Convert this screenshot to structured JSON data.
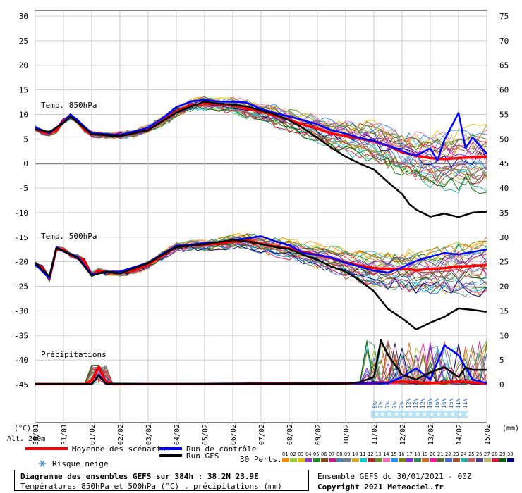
{
  "chart_data": {
    "type": "line",
    "left_axis_ticks": [
      30,
      25,
      20,
      15,
      10,
      5,
      0,
      -5,
      -10,
      -15,
      -20,
      -25,
      -30,
      -35,
      -40,
      -45
    ],
    "right_axis_ticks": [
      75,
      70,
      65,
      60,
      55,
      50,
      45,
      40,
      35,
      30,
      25,
      20,
      15,
      10,
      5,
      0
    ],
    "left_axis_unit": "(°C)",
    "right_axis_unit": "(mm)",
    "altitude_label": "Alt. 200m",
    "x_tick_labels": [
      "30/01",
      "31/01",
      "01/02",
      "02/02",
      "03/02",
      "04/02",
      "05/02",
      "06/02",
      "07/02",
      "08/02",
      "09/02",
      "10/02",
      "11/02",
      "12/02",
      "13/02",
      "14/02",
      "15/02"
    ],
    "x_range_days": [
      0,
      16
    ],
    "panel_labels": {
      "t850": "Temp. 850hPa",
      "t500": "Temp. 500hPa",
      "precip": "Précipitations"
    },
    "series": [
      {
        "name": "Moyenne des scénarios",
        "color": "#ff0000",
        "t850": [
          [
            0,
            7.2
          ],
          [
            0.25,
            6.4
          ],
          [
            0.5,
            6.1
          ],
          [
            0.75,
            6.8
          ],
          [
            1,
            8.6
          ],
          [
            1.25,
            9.6
          ],
          [
            1.5,
            8.6
          ],
          [
            1.75,
            6.9
          ],
          [
            2,
            6.0
          ],
          [
            2.5,
            5.8
          ],
          [
            3,
            5.8
          ],
          [
            3.5,
            6.1
          ],
          [
            4,
            7.1
          ],
          [
            4.5,
            8.6
          ],
          [
            5,
            10.6
          ],
          [
            5.5,
            11.8
          ],
          [
            6,
            12.3
          ],
          [
            6.5,
            12.1
          ],
          [
            7,
            11.9
          ],
          [
            7.5,
            11.2
          ],
          [
            8,
            10.6
          ],
          [
            8.5,
            9.8
          ],
          [
            9,
            8.9
          ],
          [
            9.5,
            7.9
          ],
          [
            10,
            7.1
          ],
          [
            10.5,
            6.1
          ],
          [
            11,
            5.6
          ],
          [
            11.5,
            5.1
          ],
          [
            12,
            4.5
          ],
          [
            12.5,
            3.6
          ],
          [
            13,
            2.3
          ],
          [
            13.5,
            1.6
          ],
          [
            14,
            1.1
          ],
          [
            14.5,
            0.9
          ],
          [
            15,
            1.1
          ],
          [
            15.5,
            1.3
          ],
          [
            16,
            1.4
          ]
        ],
        "t500": [
          [
            0,
            -20.5
          ],
          [
            0.25,
            -21.2
          ],
          [
            0.5,
            -23.5
          ],
          [
            0.75,
            -17.3
          ],
          [
            1,
            -17.6
          ],
          [
            1.25,
            -18.6
          ],
          [
            1.5,
            -19.0
          ],
          [
            1.75,
            -19.9
          ],
          [
            2,
            -22.6
          ],
          [
            2.25,
            -21.8
          ],
          [
            2.5,
            -22.2
          ],
          [
            3,
            -22.3
          ],
          [
            3.5,
            -21.8
          ],
          [
            4,
            -20.6
          ],
          [
            4.5,
            -18.8
          ],
          [
            5,
            -17.0
          ],
          [
            5.5,
            -16.6
          ],
          [
            6,
            -16.5
          ],
          [
            6.5,
            -16.3
          ],
          [
            7,
            -15.9
          ],
          [
            7.5,
            -15.6
          ],
          [
            8,
            -16.3
          ],
          [
            8.5,
            -16.9
          ],
          [
            9,
            -17.3
          ],
          [
            9.5,
            -18.0
          ],
          [
            10,
            -18.6
          ],
          [
            10.5,
            -19.3
          ],
          [
            11,
            -20.1
          ],
          [
            11.5,
            -20.8
          ],
          [
            12,
            -21.3
          ],
          [
            12.5,
            -21.5
          ],
          [
            13,
            -21.4
          ],
          [
            13.5,
            -21.7
          ],
          [
            14,
            -21.5
          ],
          [
            14.5,
            -21.3
          ],
          [
            15,
            -21.0
          ],
          [
            16,
            -20.7
          ]
        ],
        "precip": [
          [
            0,
            0.1
          ],
          [
            1,
            0.1
          ],
          [
            1.75,
            0.1
          ],
          [
            2,
            0.8
          ],
          [
            2.25,
            3.6
          ],
          [
            2.5,
            0.6
          ],
          [
            2.75,
            0.1
          ],
          [
            4,
            0.1
          ],
          [
            6,
            0.1
          ],
          [
            8,
            0.2
          ],
          [
            10,
            0.2
          ],
          [
            12,
            0.3
          ],
          [
            13,
            0.6
          ],
          [
            14,
            0.3
          ],
          [
            15,
            0.6
          ],
          [
            16,
            0.2
          ]
        ]
      },
      {
        "name": "Run de contrôle",
        "color": "#0000ff",
        "t850": [
          [
            0,
            7.4
          ],
          [
            0.5,
            6.2
          ],
          [
            1,
            8.4
          ],
          [
            1.25,
            10.0
          ],
          [
            1.5,
            8.8
          ],
          [
            2,
            6.2
          ],
          [
            3,
            5.8
          ],
          [
            4,
            7.3
          ],
          [
            4.5,
            9.2
          ],
          [
            5,
            11.5
          ],
          [
            5.5,
            12.6
          ],
          [
            6,
            13.0
          ],
          [
            6.5,
            12.6
          ],
          [
            7,
            12.6
          ],
          [
            7.5,
            12.4
          ],
          [
            8,
            11.1
          ],
          [
            8.5,
            10.3
          ],
          [
            9,
            9.6
          ],
          [
            9.5,
            8.8
          ],
          [
            10,
            8.0
          ],
          [
            10.5,
            6.8
          ],
          [
            11,
            6.1
          ],
          [
            11.5,
            5.2
          ],
          [
            12,
            4.6
          ],
          [
            12.5,
            3.6
          ],
          [
            13,
            2.6
          ],
          [
            13.25,
            2.0
          ],
          [
            13.5,
            1.6
          ],
          [
            14,
            3.1
          ],
          [
            14.25,
            0.6
          ],
          [
            14.5,
            4.8
          ],
          [
            15,
            10.3
          ],
          [
            15.25,
            3.1
          ],
          [
            15.5,
            5.3
          ],
          [
            16,
            2.0
          ]
        ],
        "t500": [
          [
            0,
            -20.5
          ],
          [
            0.5,
            -23.4
          ],
          [
            0.75,
            -17.1
          ],
          [
            1,
            -17.8
          ],
          [
            1.5,
            -19.0
          ],
          [
            2,
            -22.5
          ],
          [
            2.5,
            -22.2
          ],
          [
            3,
            -22.0
          ],
          [
            4,
            -20.2
          ],
          [
            4.5,
            -18.4
          ],
          [
            5,
            -16.8
          ],
          [
            6,
            -16.2
          ],
          [
            6.5,
            -16.0
          ],
          [
            7,
            -15.6
          ],
          [
            7.5,
            -15.2
          ],
          [
            8,
            -14.8
          ],
          [
            8.5,
            -15.8
          ],
          [
            9,
            -16.6
          ],
          [
            9.5,
            -18.2
          ],
          [
            10,
            -18.6
          ],
          [
            10.5,
            -19.2
          ],
          [
            11,
            -20.2
          ],
          [
            11.5,
            -21.0
          ],
          [
            12,
            -21.8
          ],
          [
            12.5,
            -22.2
          ],
          [
            13,
            -21.2
          ],
          [
            13.5,
            -19.8
          ],
          [
            14,
            -19.0
          ],
          [
            14.5,
            -18.2
          ],
          [
            15,
            -18.5
          ],
          [
            15.5,
            -18.0
          ],
          [
            16,
            -17.5
          ]
        ],
        "precip": [
          [
            0,
            0.1
          ],
          [
            2,
            0.1
          ],
          [
            2.25,
            2.0
          ],
          [
            2.5,
            0.2
          ],
          [
            4,
            0.1
          ],
          [
            10,
            0.2
          ],
          [
            12.5,
            0.3
          ],
          [
            13,
            1.5
          ],
          [
            13.5,
            3.3
          ],
          [
            14,
            1.0
          ],
          [
            14.5,
            8.0
          ],
          [
            15,
            6.0
          ],
          [
            15.5,
            1.0
          ],
          [
            16,
            0.3
          ]
        ]
      },
      {
        "name": "Run GFS",
        "color": "#000000",
        "t850": [
          [
            0,
            7.0
          ],
          [
            0.5,
            6.4
          ],
          [
            1,
            8.3
          ],
          [
            1.25,
            9.6
          ],
          [
            1.5,
            8.4
          ],
          [
            2,
            6.0
          ],
          [
            3,
            5.6
          ],
          [
            4,
            6.8
          ],
          [
            4.5,
            8.6
          ],
          [
            5,
            10.4
          ],
          [
            5.5,
            11.6
          ],
          [
            6,
            12.6
          ],
          [
            6.5,
            12.2
          ],
          [
            7,
            12.0
          ],
          [
            7.5,
            11.6
          ],
          [
            8,
            10.8
          ],
          [
            8.5,
            10.0
          ],
          [
            9,
            8.8
          ],
          [
            9.5,
            7.2
          ],
          [
            10,
            5.2
          ],
          [
            10.5,
            3.2
          ],
          [
            11,
            1.4
          ],
          [
            11.5,
            0.0
          ],
          [
            12,
            -1.2
          ],
          [
            12.5,
            -3.8
          ],
          [
            13,
            -6.2
          ],
          [
            13.25,
            -8.2
          ],
          [
            13.5,
            -9.4
          ],
          [
            14,
            -10.8
          ],
          [
            14.5,
            -10.2
          ],
          [
            15,
            -10.9
          ],
          [
            15.5,
            -10.0
          ],
          [
            16,
            -9.8
          ]
        ],
        "t500": [
          [
            0,
            -20.2
          ],
          [
            0.5,
            -23.0
          ],
          [
            0.75,
            -17.2
          ],
          [
            1,
            -17.8
          ],
          [
            1.5,
            -19.2
          ],
          [
            2,
            -22.8
          ],
          [
            2.5,
            -22.0
          ],
          [
            3,
            -22.4
          ],
          [
            4,
            -20.3
          ],
          [
            4.5,
            -18.6
          ],
          [
            5,
            -17.0
          ],
          [
            6,
            -16.4
          ],
          [
            6.5,
            -16.0
          ],
          [
            7,
            -15.6
          ],
          [
            7.5,
            -15.8
          ],
          [
            8,
            -16.4
          ],
          [
            8.5,
            -17.0
          ],
          [
            9,
            -17.4
          ],
          [
            9.5,
            -18.6
          ],
          [
            10,
            -19.6
          ],
          [
            10.5,
            -21.0
          ],
          [
            11,
            -22.0
          ],
          [
            11.5,
            -23.8
          ],
          [
            12,
            -26.0
          ],
          [
            12.5,
            -29.6
          ],
          [
            13,
            -31.5
          ],
          [
            13.25,
            -32.6
          ],
          [
            13.5,
            -33.8
          ],
          [
            14,
            -32.4
          ],
          [
            14.5,
            -31.2
          ],
          [
            15,
            -29.5
          ],
          [
            15.5,
            -29.8
          ],
          [
            16,
            -30.2
          ]
        ],
        "precip": [
          [
            0,
            0.1
          ],
          [
            2,
            0.1
          ],
          [
            2.25,
            1.8
          ],
          [
            2.5,
            0.2
          ],
          [
            4,
            0.1
          ],
          [
            11,
            0.2
          ],
          [
            11.5,
            0.5
          ],
          [
            12,
            1.5
          ],
          [
            12.25,
            9.0
          ],
          [
            12.5,
            6.0
          ],
          [
            13,
            2.0
          ],
          [
            13.5,
            1.0
          ],
          [
            14,
            2.5
          ],
          [
            14.5,
            3.5
          ],
          [
            15,
            1.5
          ],
          [
            15.25,
            3.5
          ],
          [
            15.5,
            3.0
          ],
          [
            16,
            3.0
          ]
        ]
      }
    ],
    "member_labels": [
      "01",
      "02",
      "03",
      "04",
      "05",
      "06",
      "07",
      "08",
      "09",
      "10",
      "11",
      "12",
      "13",
      "14",
      "15",
      "16",
      "17",
      "18",
      "19",
      "20",
      "21",
      "22",
      "23",
      "24",
      "25",
      "26",
      "27",
      "28",
      "29",
      "30"
    ],
    "member_colors": [
      "#ff8c00",
      "#9acd32",
      "#e0c000",
      "#9932cc",
      "#228b22",
      "#8b4513",
      "#c71585",
      "#4682b4",
      "#708090",
      "#daa520",
      "#00ced1",
      "#b22222",
      "#6b8e23",
      "#ff69b4",
      "#1e90ff",
      "#808000",
      "#8a2be2",
      "#2e8b57",
      "#d2691e",
      "#ff1493",
      "#556b2f",
      "#4169e1",
      "#a0522d",
      "#20b2aa",
      "#cd5c5c",
      "#483d8b",
      "#bdb76b",
      "#dc143c",
      "#006400",
      "#00008b"
    ],
    "snow_probabilities": [
      {
        "x": 12.0,
        "label": "6%"
      },
      {
        "x": 12.2,
        "label": "7%"
      },
      {
        "x": 12.45,
        "label": "7%"
      },
      {
        "x": 12.7,
        "label": "7%"
      },
      {
        "x": 12.95,
        "label": "7%"
      },
      {
        "x": 13.2,
        "label": "12%"
      },
      {
        "x": 13.45,
        "label": "12%"
      },
      {
        "x": 13.7,
        "label": "12%"
      },
      {
        "x": 13.95,
        "label": "16%"
      },
      {
        "x": 14.2,
        "label": "16%"
      },
      {
        "x": 14.45,
        "label": "16%"
      },
      {
        "x": 14.7,
        "label": "15%"
      },
      {
        "x": 14.95,
        "label": "11%"
      },
      {
        "x": 15.2,
        "label": "11%"
      }
    ]
  },
  "legend": {
    "mean_label": "Moyenne des scénarios",
    "control_label": "Run de contrôle",
    "gfs_label": "Run GFS",
    "snow_risk_label": "Risque neige",
    "perturbations_label": "30 Perts."
  },
  "footer": {
    "title": "Diagramme des ensembles GEFS sur 384h : 38.2N 23.9E",
    "subtitle": "Températures 850hPa et 500hPa (°C) , précipitations (mm)",
    "run_info": "Ensemble GEFS du 30/01/2021 - 00Z",
    "copyright": "Copyright 2021 Meteociel.fr"
  },
  "colors": {
    "mean": "#ff0000",
    "control": "#0000ff",
    "gfs": "#000000",
    "snow_band": "#87ceeb",
    "grid": "#cccccc"
  }
}
